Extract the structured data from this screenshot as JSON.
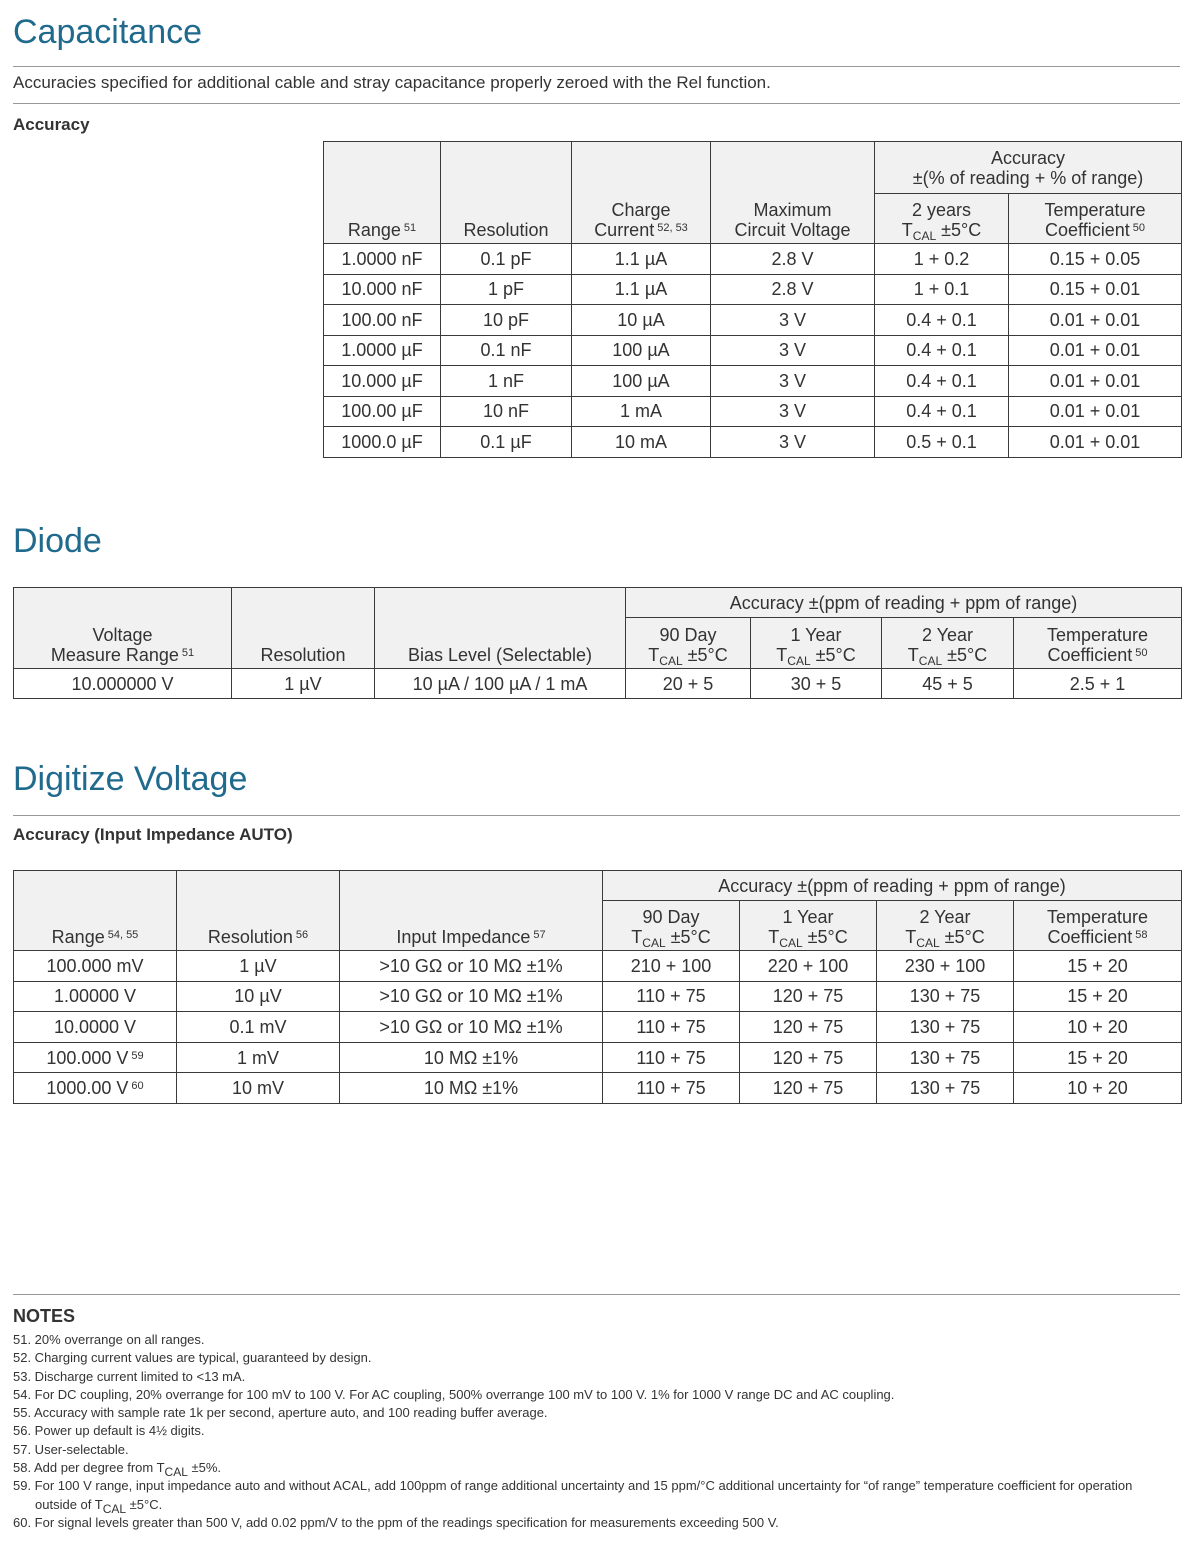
{
  "capacitance": {
    "title": "Capacitance",
    "description": "Accuracies specified for additional cable and stray capacitance properly zeroed with the Rel function.",
    "subtitle": "Accuracy",
    "table": {
      "header": {
        "columns": [
          [
            [
              "Range",
              {
                "sup": "51"
              }
            ]
          ],
          [
            [
              "Resolution"
            ]
          ],
          [
            [
              "Charge"
            ],
            [
              "Current",
              {
                "sup": "52, 53"
              }
            ]
          ],
          [
            [
              "Maximum"
            ],
            [
              "Circuit Voltage"
            ]
          ]
        ],
        "group": {
          "title": [
            [
              "Accuracy"
            ],
            [
              "±(% of reading + % of range)"
            ]
          ],
          "columns": [
            [
              [
                "2 years"
              ],
              [
                "T",
                {
                  "sub": "CAL"
                },
                " ±5°C"
              ]
            ],
            [
              [
                "Temperature"
              ],
              [
                "Coefficient",
                {
                  "sup": "50"
                }
              ]
            ]
          ]
        }
      },
      "rows": [
        [
          "1.0000 nF",
          "0.1 pF",
          "1.1 µA",
          "2.8 V",
          "1 + 0.2",
          "0.15 + 0.05"
        ],
        [
          "10.000 nF",
          "1 pF",
          "1.1 µA",
          "2.8 V",
          "1 + 0.1",
          "0.15 + 0.01"
        ],
        [
          "100.00 nF",
          "10 pF",
          "10 µA",
          "3 V",
          "0.4 + 0.1",
          "0.01 + 0.01"
        ],
        [
          "1.0000 µF",
          "0.1 nF",
          "100 µA",
          "3 V",
          "0.4 + 0.1",
          "0.01 + 0.01"
        ],
        [
          "10.000 µF",
          "1 nF",
          "100 µA",
          "3 V",
          "0.4 + 0.1",
          "0.01 + 0.01"
        ],
        [
          "100.00 µF",
          "10 nF",
          "1 mA",
          "3 V",
          "0.4 + 0.1",
          "0.01 + 0.01"
        ],
        [
          "1000.0 µF",
          "0.1 µF",
          "10 mA",
          "3 V",
          "0.5 + 0.1",
          "0.01 + 0.01"
        ]
      ]
    }
  },
  "diode": {
    "title": "Diode",
    "table": {
      "header": {
        "columns": [
          [
            [
              "Voltage"
            ],
            [
              "Measure Range",
              {
                "sup": "51"
              }
            ]
          ],
          [
            [
              "Resolution"
            ]
          ],
          [
            [
              "Bias Level (Selectable)"
            ]
          ]
        ],
        "group": {
          "title": [
            [
              "Accuracy ±(ppm of reading + ppm of range)"
            ]
          ],
          "columns": [
            [
              [
                "90 Day"
              ],
              [
                "T",
                {
                  "sub": "CAL"
                },
                " ±5°C"
              ]
            ],
            [
              [
                "1 Year"
              ],
              [
                "T",
                {
                  "sub": "CAL"
                },
                " ±5°C"
              ]
            ],
            [
              [
                "2 Year"
              ],
              [
                "T",
                {
                  "sub": "CAL"
                },
                " ±5°C"
              ]
            ],
            [
              [
                "Temperature"
              ],
              [
                "Coefficient",
                {
                  "sup": "50"
                }
              ]
            ]
          ]
        }
      },
      "rows": [
        [
          "10.000000 V",
          "1 µV",
          "10 µA / 100 µA / 1 mA",
          "20 + 5",
          "30 + 5",
          "45 + 5",
          "2.5 + 1"
        ]
      ]
    }
  },
  "digitize": {
    "title": "Digitize Voltage",
    "subtitle": "Accuracy (Input Impedance AUTO)",
    "table": {
      "header": {
        "columns": [
          [
            [
              "Range",
              {
                "sup": "54, 55"
              }
            ]
          ],
          [
            [
              "Resolution",
              {
                "sup": "56"
              }
            ]
          ],
          [
            [
              "Input Impedance",
              {
                "sup": "57"
              }
            ]
          ]
        ],
        "group": {
          "title": [
            [
              "Accuracy ±(ppm of reading + ppm of range)"
            ]
          ],
          "columns": [
            [
              [
                "90 Day"
              ],
              [
                "T",
                {
                  "sub": "CAL"
                },
                " ±5°C"
              ]
            ],
            [
              [
                "1 Year"
              ],
              [
                "T",
                {
                  "sub": "CAL"
                },
                " ±5°C"
              ]
            ],
            [
              [
                "2 Year"
              ],
              [
                "T",
                {
                  "sub": "CAL"
                },
                " ±5°C"
              ]
            ],
            [
              [
                "Temperature"
              ],
              [
                "Coefficient",
                {
                  "sup": "58"
                }
              ]
            ]
          ]
        }
      },
      "rows": [
        [
          "100.000 mV",
          "1 µV",
          ">10 GΩ or 10 MΩ ±1%",
          "210 + 100",
          "220 + 100",
          "230 + 100",
          "15 + 20"
        ],
        [
          "1.00000 V",
          "10 µV",
          ">10 GΩ or 10 MΩ ±1%",
          "110 + 75",
          "120 + 75",
          "130 + 75",
          "15 + 20"
        ],
        [
          "10.0000 V",
          "0.1 mV",
          ">10 GΩ or 10 MΩ ±1%",
          "110 + 75",
          "120 + 75",
          "130 + 75",
          "10 + 20"
        ],
        [
          [
            "100.000 V",
            {
              "sup": "59"
            }
          ],
          "1 mV",
          "10 MΩ ±1%",
          "110 + 75",
          "120 + 75",
          "130 + 75",
          "15 + 20"
        ],
        [
          [
            "1000.00 V",
            {
              "sup": "60"
            }
          ],
          "10 mV",
          "10 MΩ ±1%",
          "110 + 75",
          "120 + 75",
          "130 + 75",
          "10 + 20"
        ]
      ]
    }
  },
  "notes": {
    "title": "NOTES",
    "items": [
      [
        "51. 20% overrange on all ranges."
      ],
      [
        "52. Charging current values are typical, guaranteed by design."
      ],
      [
        "53. Discharge current limited to <13 mA."
      ],
      [
        "54. For DC coupling, 20% overrange for 100 mV to 100 V. For AC coupling, 500% overrange 100 mV to 100 V. 1% for 1000 V range DC and AC coupling."
      ],
      [
        "55. Accuracy with sample rate 1k per second, aperture auto, and 100 reading buffer average."
      ],
      [
        "56. Power up default is 4½ digits."
      ],
      [
        "57. User-selectable."
      ],
      [
        "58. Add per degree from T",
        {
          "sub": "CAL"
        },
        " ±5%."
      ],
      [
        "59. For 100 V range, input impedance auto and without ACAL, add 100ppm of range additional uncertainty and 15 ppm/°C additional uncertainty for “of range” temperature coefficient for operation outside of T",
        {
          "sub": "CAL"
        },
        " ±5°C."
      ],
      [
        "60. For signal levels greater than 500 V, add 0.02 ppm/V to the ppm of the readings specification for measurements exceeding 500 V."
      ]
    ]
  }
}
